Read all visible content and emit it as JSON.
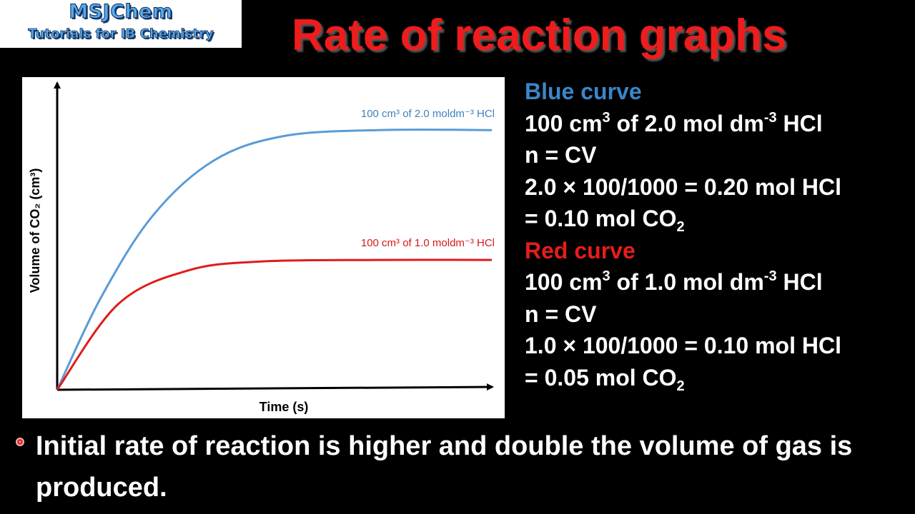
{
  "logo": {
    "line1": "MSJChem",
    "line2": "Tutorials for IB Chemistry"
  },
  "title": "Rate of reaction graphs",
  "side": {
    "blue_heading": "Blue curve",
    "blue_line1": {
      "pre": "100 cm",
      "sup1": "3",
      "mid": " of 2.0 mol dm",
      "sup2": "-3",
      "post": " HCl"
    },
    "blue_line2": "n = CV",
    "blue_line3": "2.0 × 100/1000 = 0.20 mol HCl",
    "blue_line4": {
      "pre": "= 0.10 mol CO",
      "sub": "2"
    },
    "red_heading": "Red curve",
    "red_line1": {
      "pre": "100 cm",
      "sup1": "3",
      "mid": " of 1.0 mol dm",
      "sup2": "-3",
      "post": " HCl"
    },
    "red_line2": "n = CV",
    "red_line3": "1.0 × 100/1000 = 0.10 mol HCl",
    "red_line4": {
      "pre": "= 0.05 mol CO",
      "sub": "2"
    }
  },
  "bottom_text": "Initial rate of reaction is higher and double the volume of gas is produced.",
  "chart_data": {
    "type": "line",
    "title": "",
    "xlabel": "Time (s)",
    "ylabel": "Volume of CO₂ (cm³)",
    "xlim": [
      0,
      10
    ],
    "ylim": [
      0,
      100
    ],
    "grid": false,
    "units_note": "relative (no tick labels shown)",
    "series": [
      {
        "name": "100 cm³ of 2.0 moldm⁻³ HCl",
        "color": "#5b9bd5",
        "x": [
          0,
          1,
          2.2,
          3.6,
          5.2,
          7.4,
          10
        ],
        "y": [
          0,
          30,
          57,
          75,
          83,
          85,
          85
        ]
      },
      {
        "name": "100 cm³ of 1.0 moldm⁻³ HCl",
        "color": "#e01b1b",
        "x": [
          0,
          1.4,
          3,
          4.7,
          7.4,
          10
        ],
        "y": [
          0,
          28,
          39,
          42,
          42.5,
          42.5
        ]
      }
    ]
  }
}
